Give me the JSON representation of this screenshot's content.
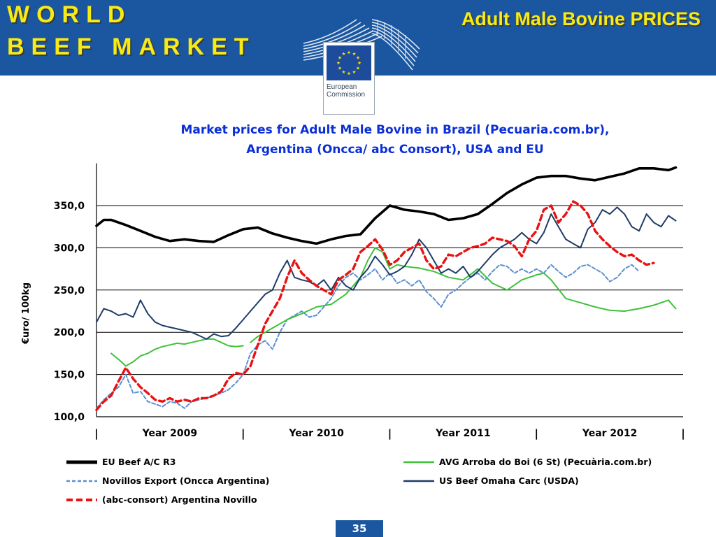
{
  "header": {
    "title_line1": "WORLD",
    "title_line2": "BEEF MARKET",
    "subtitle": "Adult Male Bovine PRICES",
    "logo_text_line1": "European",
    "logo_text_line2": "Commission"
  },
  "colors": {
    "banner_bg": "#1a57a0",
    "banner_text": "#f6ea17",
    "chart_title": "#0a2fd6",
    "eu": "#000000",
    "brazil": "#3fc13a",
    "arg_export": "#5b8fd0",
    "usa": "#1f3c68",
    "arg_novillo": "#e81212"
  },
  "chart_data": {
    "type": "line",
    "title_line1": "Market prices for Adult Male Bovine in Brazil (Pecuaria.com.br),",
    "title_line2": "Argentina (Oncca/ abc Consort),  USA and EU",
    "ylabel": "€uro/ 100kg",
    "xlabel": "",
    "ylim": [
      100,
      400
    ],
    "yticks": [
      "100,0",
      "150,0",
      "200,0",
      "250,0",
      "300,0",
      "350,0"
    ],
    "ytick_values": [
      100,
      150,
      200,
      250,
      300,
      350
    ],
    "grid": true,
    "x_range": [
      0,
      4
    ],
    "x_separators": [
      "|",
      "|",
      "|",
      "|",
      "|"
    ],
    "x_separator_positions": [
      0,
      1,
      2,
      3,
      4
    ],
    "x_labels": [
      "Year 2009",
      "Year 2010",
      "Year 2011",
      "Year 2012"
    ],
    "x_label_positions": [
      0.5,
      1.5,
      2.5,
      3.5
    ],
    "series": [
      {
        "key": "eu",
        "name": "EU Beef A/C R3",
        "style": "solid",
        "x": [
          0,
          0.05,
          0.1,
          0.2,
          0.3,
          0.4,
          0.5,
          0.6,
          0.7,
          0.8,
          0.9,
          1.0,
          1.1,
          1.2,
          1.3,
          1.4,
          1.5,
          1.6,
          1.7,
          1.8,
          1.9,
          2.0,
          2.1,
          2.2,
          2.3,
          2.4,
          2.5,
          2.6,
          2.7,
          2.8,
          2.9,
          3.0,
          3.1,
          3.2,
          3.3,
          3.4,
          3.5,
          3.6,
          3.7,
          3.8,
          3.9,
          3.95
        ],
        "values": [
          326,
          333,
          333,
          327,
          320,
          313,
          308,
          310,
          308,
          307,
          315,
          322,
          324,
          317,
          312,
          308,
          305,
          310,
          314,
          316,
          335,
          350,
          345,
          343,
          340,
          333,
          335,
          340,
          352,
          365,
          375,
          383,
          385,
          385,
          382,
          380,
          384,
          388,
          394,
          394,
          392,
          395
        ]
      },
      {
        "key": "brazil",
        "name": "AVG Arroba do Boi (6 St) (Pecuària.com.br)",
        "style": "solid",
        "segments": [
          {
            "x": [
              0.1,
              0.15,
              0.2,
              0.25,
              0.3,
              0.35,
              0.4,
              0.45,
              0.5,
              0.55,
              0.6,
              0.65,
              0.7,
              0.75,
              0.8,
              0.85,
              0.9,
              0.95,
              1.0
            ],
            "values": [
              175,
              168,
              160,
              165,
              172,
              175,
              180,
              183,
              185,
              187,
              186,
              188,
              190,
              192,
              192,
              188,
              184,
              183,
              184
            ]
          },
          {
            "x": [
              1.05,
              1.1,
              1.2,
              1.3,
              1.4,
              1.5,
              1.6,
              1.7,
              1.75,
              1.8,
              1.85,
              1.9,
              1.95,
              2.0,
              2.05,
              2.1,
              2.2,
              2.3,
              2.4,
              2.5,
              2.6,
              2.7,
              2.8,
              2.9,
              3.0,
              3.05,
              3.1,
              3.2,
              3.3,
              3.4,
              3.5,
              3.6,
              3.7,
              3.8,
              3.9,
              3.95
            ],
            "values": [
              188,
              195,
              205,
              215,
              222,
              230,
              233,
              245,
              255,
              265,
              285,
              300,
              295,
              275,
              280,
              278,
              276,
              272,
              265,
              262,
              275,
              258,
              250,
              262,
              268,
              270,
              262,
              240,
              235,
              230,
              226,
              225,
              228,
              232,
              238,
              228
            ]
          }
        ]
      },
      {
        "key": "arg_export",
        "name": "Novillos Export  (Oncca Argentina)",
        "style": "dashed",
        "segments": [
          {
            "x": [
              0,
              0.05,
              0.1,
              0.15,
              0.2,
              0.25,
              0.3,
              0.35,
              0.4,
              0.45,
              0.5,
              0.55,
              0.6,
              0.65,
              0.7,
              0.75,
              0.8,
              0.85,
              0.9,
              0.95,
              1.0,
              1.05,
              1.1,
              1.15,
              1.2,
              1.25,
              1.3,
              1.35,
              1.4,
              1.45,
              1.5,
              1.55,
              1.6,
              1.65,
              1.7,
              1.75,
              1.8,
              1.85,
              1.9,
              1.95,
              2.0,
              2.05,
              2.1,
              2.15,
              2.2,
              2.25,
              2.3,
              2.35,
              2.4,
              2.45,
              2.5,
              2.55,
              2.6,
              2.65,
              2.7,
              2.75,
              2.8,
              2.85,
              2.9,
              2.95,
              3.0,
              3.05,
              3.1,
              3.15,
              3.2,
              3.25,
              3.3,
              3.35,
              3.4,
              3.45,
              3.5,
              3.55,
              3.6,
              3.65,
              3.7
            ],
            "values": [
              110,
              120,
              128,
              135,
              150,
              128,
              130,
              118,
              115,
              112,
              118,
              116,
              110,
              118,
              120,
              122,
              125,
              128,
              132,
              140,
              150,
              175,
              185,
              190,
              180,
              200,
              215,
              220,
              225,
              218,
              220,
              230,
              240,
              255,
              265,
              270,
              262,
              268,
              275,
              262,
              270,
              258,
              262,
              255,
              262,
              248,
              240,
              230,
              245,
              250,
              258,
              265,
              270,
              262,
              272,
              280,
              278,
              270,
              275,
              270,
              275,
              270,
              280,
              272,
              265,
              270,
              278,
              280,
              275,
              270,
              260,
              265,
              275,
              280,
              272
            ]
          }
        ]
      },
      {
        "key": "usa",
        "name": "US Beef Omaha Carc (USDA)",
        "style": "solid",
        "x": [
          0,
          0.05,
          0.1,
          0.15,
          0.2,
          0.25,
          0.3,
          0.35,
          0.4,
          0.45,
          0.5,
          0.55,
          0.6,
          0.65,
          0.7,
          0.75,
          0.8,
          0.85,
          0.9,
          0.95,
          1.0,
          1.05,
          1.1,
          1.15,
          1.2,
          1.25,
          1.3,
          1.35,
          1.4,
          1.45,
          1.5,
          1.55,
          1.6,
          1.65,
          1.7,
          1.75,
          1.8,
          1.85,
          1.9,
          1.95,
          2.0,
          2.05,
          2.1,
          2.15,
          2.2,
          2.25,
          2.3,
          2.35,
          2.4,
          2.45,
          2.5,
          2.55,
          2.6,
          2.65,
          2.7,
          2.75,
          2.8,
          2.85,
          2.9,
          2.95,
          3.0,
          3.05,
          3.1,
          3.15,
          3.2,
          3.25,
          3.3,
          3.35,
          3.4,
          3.45,
          3.5,
          3.55,
          3.6,
          3.65,
          3.7,
          3.75,
          3.8,
          3.85,
          3.9,
          3.95
        ],
        "values": [
          212,
          228,
          225,
          220,
          222,
          218,
          238,
          222,
          212,
          208,
          206,
          204,
          202,
          200,
          196,
          192,
          198,
          195,
          196,
          205,
          215,
          225,
          235,
          245,
          250,
          270,
          285,
          265,
          262,
          260,
          255,
          262,
          250,
          265,
          255,
          250,
          265,
          275,
          290,
          280,
          268,
          272,
          278,
          292,
          310,
          300,
          285,
          270,
          275,
          270,
          278,
          265,
          272,
          282,
          292,
          300,
          305,
          310,
          318,
          310,
          305,
          318,
          340,
          325,
          310,
          305,
          300,
          322,
          330,
          345,
          340,
          348,
          340,
          325,
          320,
          340,
          330,
          325,
          338,
          332
        ]
      },
      {
        "key": "arg_novillo",
        "name": "(abc-consort) Argentina Novillo",
        "style": "dashed",
        "x": [
          0,
          0.05,
          0.1,
          0.15,
          0.2,
          0.25,
          0.3,
          0.35,
          0.4,
          0.45,
          0.5,
          0.55,
          0.6,
          0.65,
          0.7,
          0.75,
          0.8,
          0.85,
          0.9,
          0.95,
          1.0,
          1.05,
          1.1,
          1.15,
          1.2,
          1.25,
          1.3,
          1.35,
          1.4,
          1.45,
          1.5,
          1.55,
          1.6,
          1.65,
          1.7,
          1.75,
          1.8,
          1.85,
          1.9,
          1.95,
          2.0,
          2.05,
          2.1,
          2.15,
          2.2,
          2.25,
          2.3,
          2.35,
          2.4,
          2.45,
          2.5,
          2.55,
          2.6,
          2.65,
          2.7,
          2.75,
          2.8,
          2.85,
          2.9,
          2.95,
          3.0,
          3.05,
          3.1,
          3.15,
          3.2,
          3.25,
          3.3,
          3.35,
          3.4,
          3.45,
          3.5,
          3.55,
          3.6,
          3.65,
          3.7,
          3.75,
          3.8
        ],
        "values": [
          108,
          118,
          125,
          142,
          158,
          145,
          135,
          128,
          120,
          118,
          122,
          118,
          120,
          118,
          122,
          122,
          125,
          130,
          145,
          152,
          150,
          160,
          185,
          210,
          225,
          240,
          265,
          285,
          270,
          262,
          255,
          250,
          245,
          262,
          268,
          275,
          295,
          302,
          310,
          298,
          280,
          285,
          295,
          300,
          305,
          285,
          275,
          278,
          292,
          290,
          295,
          300,
          302,
          305,
          312,
          310,
          308,
          302,
          290,
          310,
          320,
          345,
          350,
          330,
          340,
          355,
          350,
          340,
          320,
          310,
          302,
          295,
          290,
          292,
          285,
          280,
          282
        ]
      }
    ]
  },
  "page": {
    "number": "35"
  }
}
